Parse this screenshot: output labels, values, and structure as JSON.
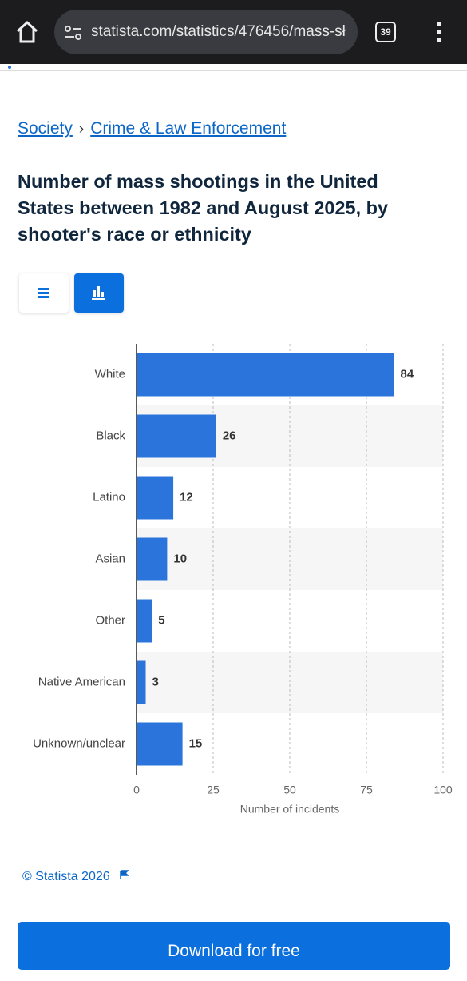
{
  "browser": {
    "url": "statista.com/statistics/476456/mass-sł",
    "tab_count": "39"
  },
  "breadcrumb": {
    "items": [
      "Society",
      "Crime & Law Enforcement"
    ],
    "separator": "›"
  },
  "chart_data": {
    "type": "bar",
    "orientation": "horizontal",
    "title": "Number of mass shootings in the United States between 1982 and August 2025, by shooter's race or ethnicity",
    "categories": [
      "White",
      "Black",
      "Latino",
      "Asian",
      "Other",
      "Native American",
      "Unknown/unclear"
    ],
    "values": [
      84,
      26,
      12,
      10,
      5,
      3,
      15
    ],
    "color": "#2a74dc",
    "xlim": [
      0,
      100
    ],
    "xticks": [
      0,
      25,
      50,
      75,
      100
    ],
    "x_label": "Number of incidents",
    "grid": true
  },
  "footer": {
    "copyright": "© Statista 2026",
    "button": "Download for free"
  }
}
